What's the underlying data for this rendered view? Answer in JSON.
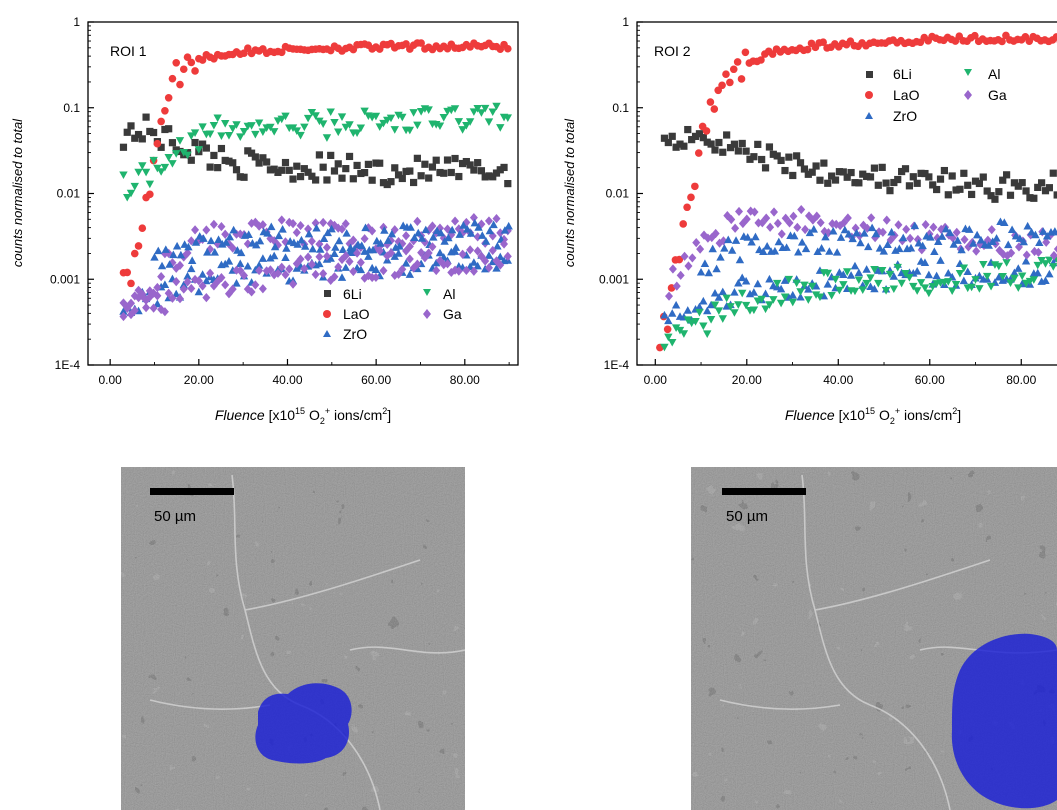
{
  "chart_data": [
    {
      "type": "scatter",
      "panel_label": "ROI 1",
      "ylabel": "counts normalised to total",
      "xlabel_prefix": "Fluence",
      "xlabel_unit_open": "[x10",
      "xlabel_exp": "15",
      "xlabel_ion": "O",
      "xlabel_ion_sub": "2",
      "xlabel_ion_sup": "+",
      "xlabel_tail": " ions/cm",
      "xlabel_tail_sup": "2",
      "xlabel_close": "]",
      "y_scale": "log",
      "ylim": [
        0.0001,
        1
      ],
      "yticks": [
        1,
        0.1,
        0.01,
        0.001,
        0.0001
      ],
      "ytick_labels": [
        "1",
        "0.1",
        "0.01",
        "0.001",
        "1E-4"
      ],
      "xlim": [
        -5,
        92
      ],
      "xticks": [
        0,
        20,
        40,
        60,
        80
      ],
      "xtick_labels": [
        "0.00",
        "20.00",
        "40.00",
        "60.00",
        "80.00"
      ],
      "legend_placement": "lower-right",
      "series": [
        {
          "name": "6Li",
          "marker": "square",
          "color": "#3a3a3a",
          "keypoints": [
            [
              3,
              0.05
            ],
            [
              8,
              0.055
            ],
            [
              12,
              0.045
            ],
            [
              20,
              0.03
            ],
            [
              30,
              0.022
            ],
            [
              45,
              0.02
            ],
            [
              60,
              0.018
            ],
            [
              75,
              0.018
            ],
            [
              90,
              0.018
            ]
          ]
        },
        {
          "name": "LaO",
          "marker": "circle",
          "color": "#ee3b3b",
          "keypoints": [
            [
              3,
              0.0012
            ],
            [
              5,
              0.0013
            ],
            [
              8,
              0.006
            ],
            [
              10,
              0.03
            ],
            [
              12,
              0.1
            ],
            [
              15,
              0.25
            ],
            [
              20,
              0.38
            ],
            [
              30,
              0.45
            ],
            [
              50,
              0.5
            ],
            [
              70,
              0.52
            ],
            [
              90,
              0.52
            ]
          ]
        },
        {
          "name": "ZrO",
          "marker": "triangle-up",
          "color": "#2f6bc4",
          "keypoints": [
            [
              3,
              0.0004
            ],
            [
              10,
              0.0007
            ],
            [
              20,
              0.001
            ],
            [
              30,
              0.0013
            ],
            [
              50,
              0.0014
            ],
            [
              70,
              0.0016
            ],
            [
              90,
              0.0018
            ]
          ]
        },
        {
          "name": "Al",
          "marker": "triangle-down",
          "color": "#1fb46e",
          "keypoints": [
            [
              3,
              0.012
            ],
            [
              10,
              0.02
            ],
            [
              15,
              0.035
            ],
            [
              25,
              0.055
            ],
            [
              50,
              0.065
            ],
            [
              70,
              0.07
            ],
            [
              90,
              0.085
            ]
          ]
        },
        {
          "name": "Ga",
          "marker": "diamond",
          "color": "#9966cc",
          "keypoints": [
            [
              3,
              0.0004
            ],
            [
              8,
              0.0006
            ],
            [
              12,
              0.0015
            ],
            [
              20,
              0.003
            ],
            [
              35,
              0.0035
            ],
            [
              60,
              0.003
            ],
            [
              90,
              0.004
            ]
          ]
        },
        {
          "name": "",
          "marker": "triangle-up",
          "color": "#2f6bc4",
          "keypoints": [
            [
              10,
              0.0015
            ],
            [
              20,
              0.0025
            ],
            [
              40,
              0.003
            ],
            [
              60,
              0.003
            ],
            [
              90,
              0.0035
            ]
          ]
        },
        {
          "name": "",
          "marker": "diamond",
          "color": "#9966cc",
          "keypoints": [
            [
              3,
              0.0004
            ],
            [
              20,
              0.0008
            ],
            [
              40,
              0.0012
            ],
            [
              60,
              0.0015
            ],
            [
              90,
              0.0019
            ]
          ]
        }
      ]
    },
    {
      "type": "scatter",
      "panel_label": "ROI 2",
      "ylabel": "counts normalised to total",
      "xlabel_prefix": "Fluence",
      "xlabel_unit_open": "[x10",
      "xlabel_exp": "15",
      "xlabel_ion": "O",
      "xlabel_ion_sub": "2",
      "xlabel_ion_sup": "+",
      "xlabel_tail": " ions/cm",
      "xlabel_tail_sup": "2",
      "xlabel_close": "]",
      "y_scale": "log",
      "ylim": [
        0.0001,
        1
      ],
      "yticks": [
        1,
        0.1,
        0.01,
        0.001,
        0.0001
      ],
      "ytick_labels": [
        "1",
        "0.1",
        "0.01",
        "0.001",
        "1E-4"
      ],
      "xlim": [
        -4,
        90
      ],
      "xticks": [
        0,
        20,
        40,
        60,
        80
      ],
      "xtick_labels": [
        "0.00",
        "20.00",
        "40.00",
        "60.00",
        "80.00"
      ],
      "legend_placement": "top-right",
      "series": [
        {
          "name": "6Li",
          "marker": "square",
          "color": "#3a3a3a",
          "keypoints": [
            [
              2,
              0.045
            ],
            [
              8,
              0.05
            ],
            [
              12,
              0.045
            ],
            [
              20,
              0.03
            ],
            [
              35,
              0.02
            ],
            [
              50,
              0.015
            ],
            [
              70,
              0.012
            ],
            [
              90,
              0.012
            ]
          ]
        },
        {
          "name": "LaO",
          "marker": "circle",
          "color": "#ee3b3b",
          "keypoints": [
            [
              1,
              0.0002
            ],
            [
              3,
              0.0004
            ],
            [
              5,
              0.002
            ],
            [
              8,
              0.01
            ],
            [
              10,
              0.05
            ],
            [
              14,
              0.15
            ],
            [
              20,
              0.35
            ],
            [
              30,
              0.5
            ],
            [
              50,
              0.6
            ],
            [
              70,
              0.65
            ],
            [
              90,
              0.65
            ]
          ]
        },
        {
          "name": "ZrO",
          "marker": "triangle-up",
          "color": "#2f6bc4",
          "keypoints": [
            [
              2,
              0.0003
            ],
            [
              10,
              0.0005
            ],
            [
              20,
              0.0008
            ],
            [
              35,
              0.0009
            ],
            [
              50,
              0.0011
            ],
            [
              70,
              0.0012
            ],
            [
              90,
              0.0013
            ]
          ]
        },
        {
          "name": "Al",
          "marker": "triangle-down",
          "color": "#1fb46e",
          "keypoints": [
            [
              2,
              0.0002
            ],
            [
              10,
              0.0003
            ],
            [
              20,
              0.0006
            ],
            [
              40,
              0.0009
            ],
            [
              60,
              0.001
            ],
            [
              90,
              0.0012
            ]
          ]
        },
        {
          "name": "Ga",
          "marker": "diamond",
          "color": "#9966cc",
          "keypoints": [
            [
              3,
              0.0008
            ],
            [
              8,
              0.002
            ],
            [
              15,
              0.004
            ],
            [
              25,
              0.005
            ],
            [
              40,
              0.004
            ],
            [
              60,
              0.003
            ],
            [
              90,
              0.0025
            ]
          ]
        },
        {
          "name": "",
          "marker": "triangle-up",
          "color": "#2f6bc4",
          "keypoints": [
            [
              10,
              0.0015
            ],
            [
              20,
              0.0025
            ],
            [
              40,
              0.0028
            ],
            [
              60,
              0.003
            ],
            [
              90,
              0.0035
            ]
          ]
        }
      ]
    }
  ],
  "images": [
    {
      "scale_bar_label": "50 µm",
      "overlay_color": "#1a1fd6"
    },
    {
      "scale_bar_label": "50 µm",
      "overlay_color": "#1a1fd6"
    }
  ]
}
